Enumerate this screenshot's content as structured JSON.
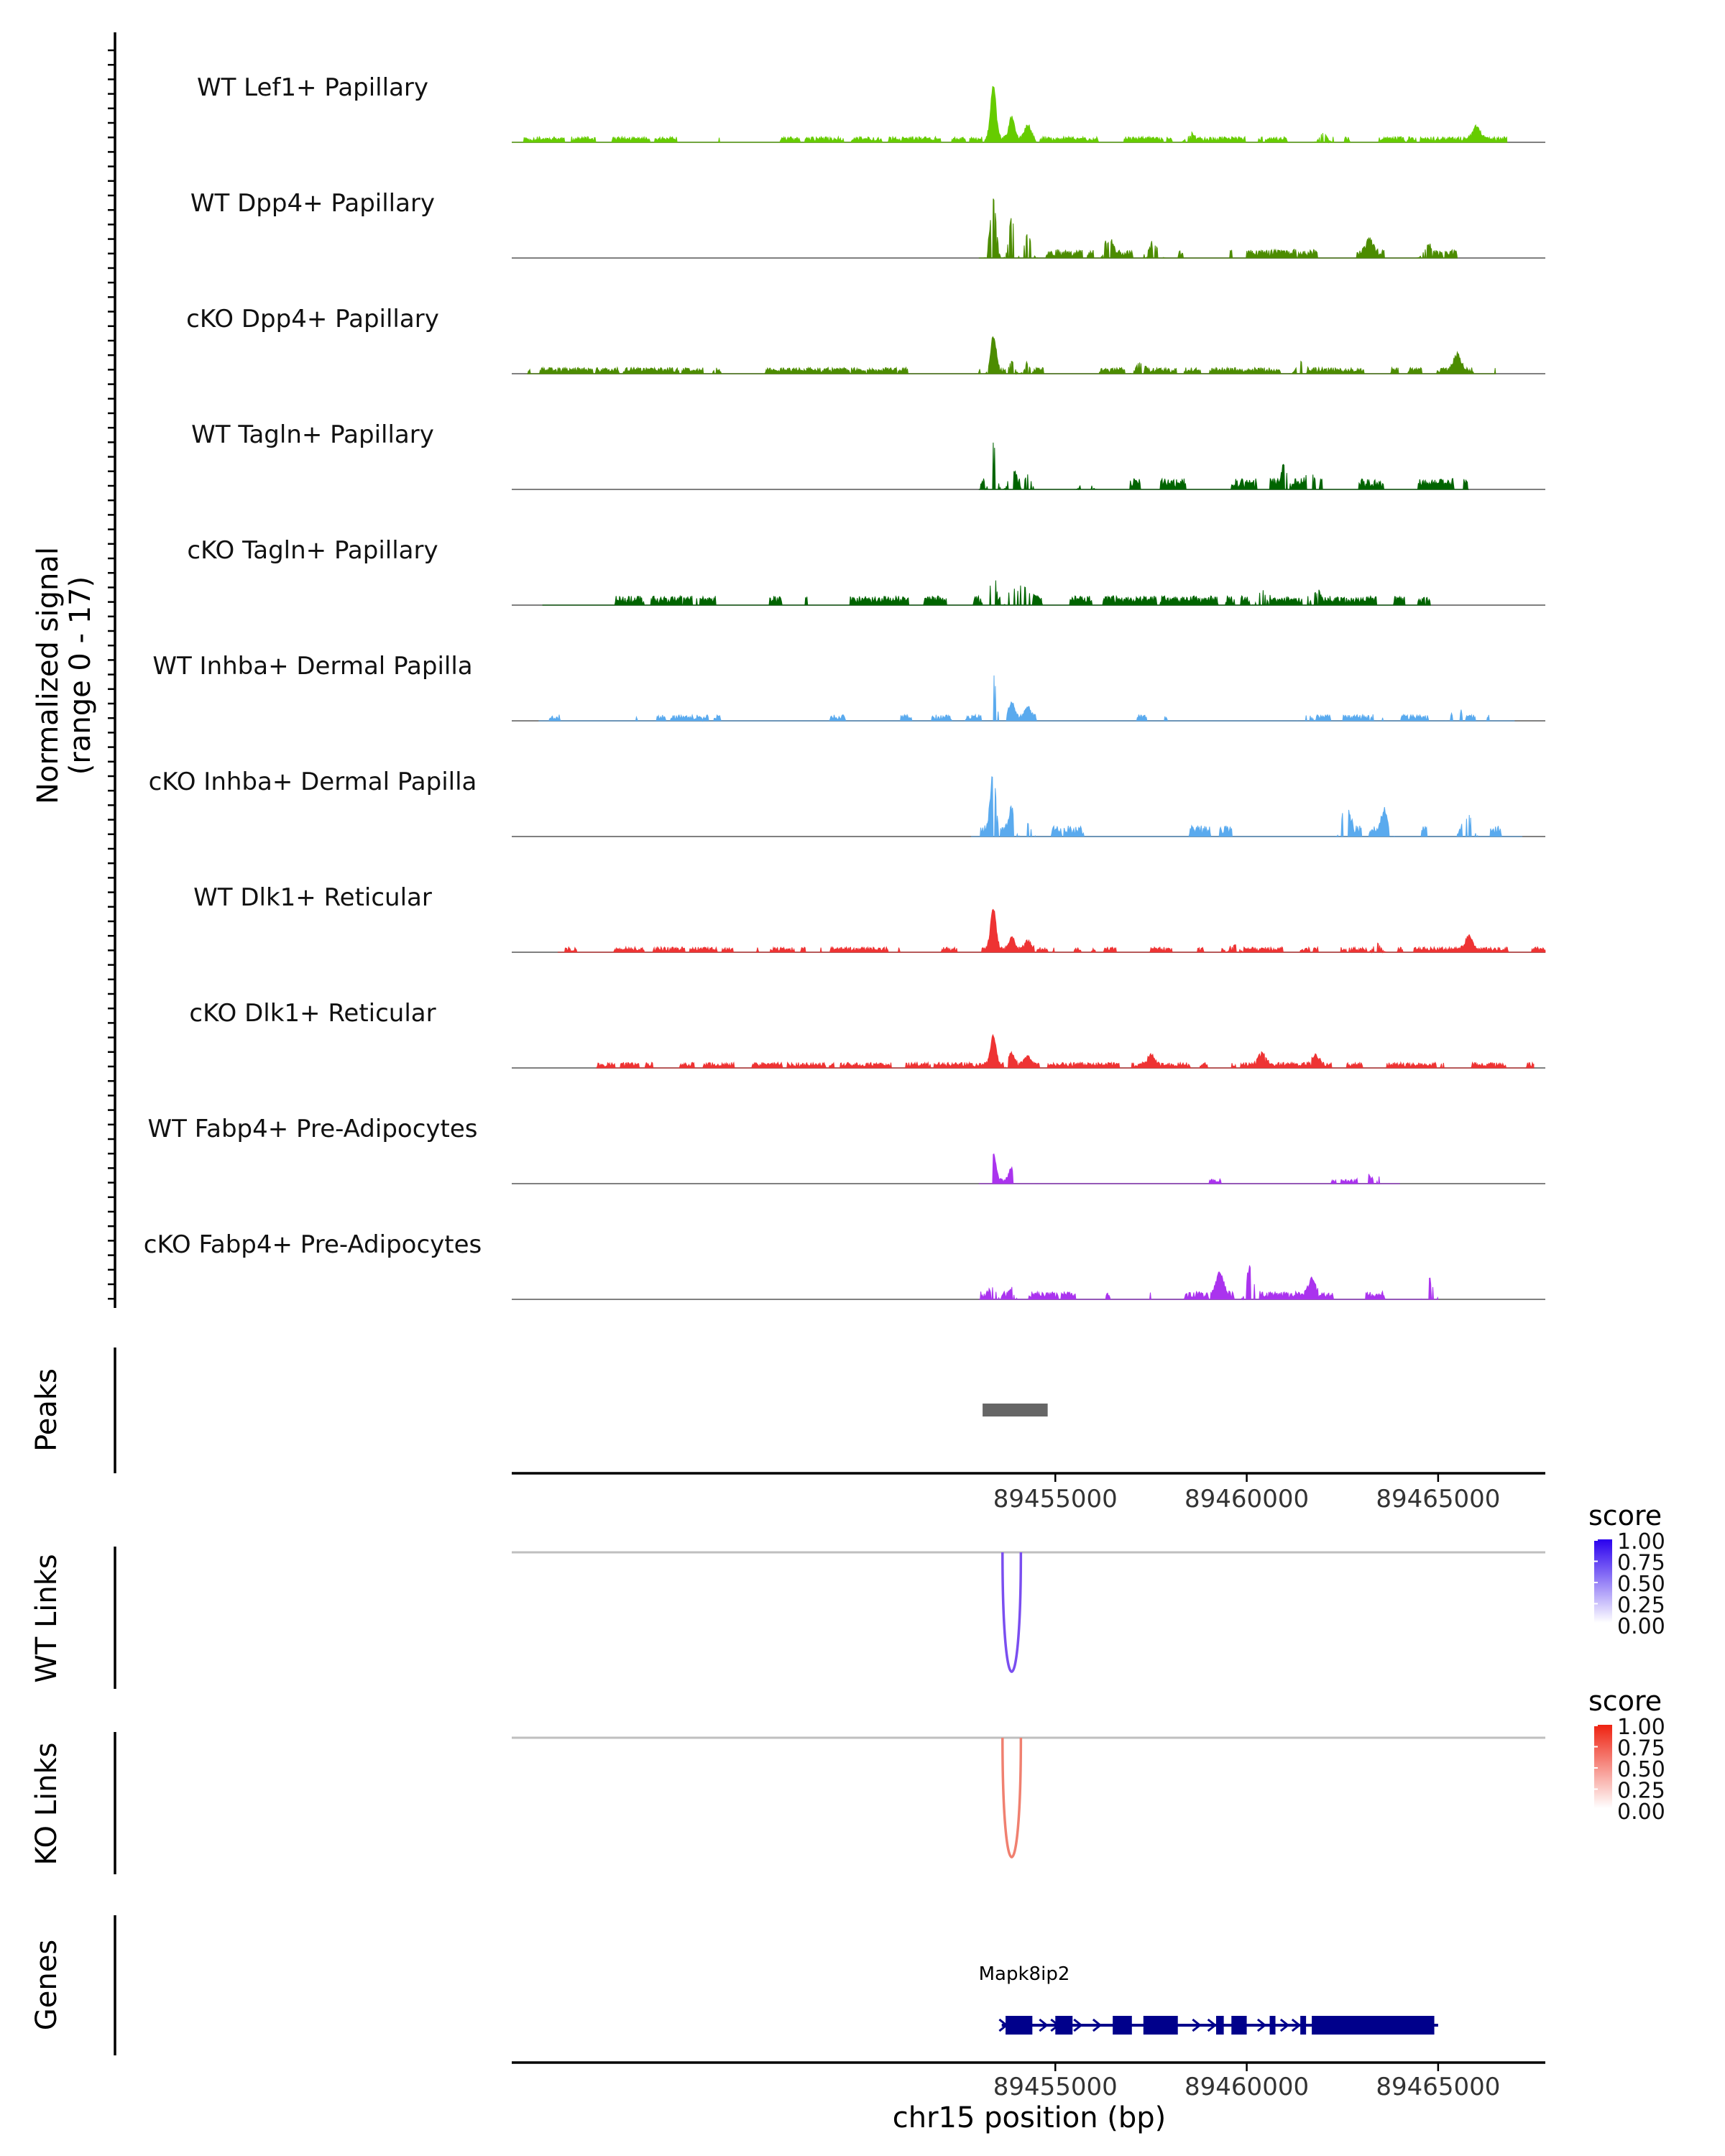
{
  "chart_data": {
    "type": "area",
    "chromosome": "chr15",
    "x_range": [
      89440800,
      89467800
    ],
    "coverage_panel": {
      "ylabel_line1": "Normalized signal",
      "ylabel_line2": "(range 0 - 17)",
      "y_range": [
        0,
        17
      ],
      "main_peak_bp": 89453380,
      "tracks": [
        {
          "name": "WT Lef1+ Papillary",
          "color": "#66cc00",
          "seed": 11,
          "density": 0.55,
          "noise": 0.18,
          "main": 0.85,
          "secondary": 0.35,
          "start": 89440800,
          "end": 89466800,
          "hotspots": [
            [
              89466000,
              0.2
            ],
            [
              89462000,
              0.15
            ],
            [
              89458500,
              0.1
            ]
          ]
        },
        {
          "name": "WT Dpp4+ Papillary",
          "color": "#4c8c00",
          "seed": 23,
          "density": 0.32,
          "noise": 0.28,
          "main": 0.95,
          "secondary": 0.65,
          "start": 89453000,
          "end": 89465500,
          "hotspots": [
            [
              89456400,
              0.25
            ],
            [
              89457600,
              0.2
            ],
            [
              89463200,
              0.2
            ],
            [
              89464700,
              0.15
            ]
          ]
        },
        {
          "name": "cKO Dpp4+ Papillary",
          "color": "#4c8c00",
          "seed": 37,
          "density": 0.45,
          "noise": 0.2,
          "main": 0.55,
          "secondary": 0.2,
          "start": 89441200,
          "end": 89466500,
          "hotspots": [
            [
              89465500,
              0.25
            ],
            [
              89461400,
              0.2
            ],
            [
              89457200,
              0.18
            ]
          ]
        },
        {
          "name": "WT Tagln+ Papillary",
          "color": "#006400",
          "seed": 41,
          "density": 0.22,
          "noise": 0.35,
          "main": 0.75,
          "secondary": 0.4,
          "start": 89453000,
          "end": 89465800,
          "hotspots": [
            [
              89461000,
              0.3
            ],
            [
              89455800,
              0.25
            ],
            [
              89461700,
              0.25
            ]
          ]
        },
        {
          "name": "cKO Tagln+ Papillary",
          "color": "#006400",
          "seed": 53,
          "density": 0.3,
          "noise": 0.3,
          "main": 0.6,
          "secondary": 0.35,
          "start": 89441600,
          "end": 89464800,
          "hotspots": [
            [
              89454100,
              0.3
            ],
            [
              89460400,
              0.25
            ],
            [
              89461800,
              0.2
            ]
          ]
        },
        {
          "name": "WT Inhba+ Dermal Papilla",
          "color": "#5aaaee",
          "seed": 67,
          "density": 0.12,
          "noise": 0.2,
          "main": 0.75,
          "secondary": 0.25,
          "start": 89441500,
          "end": 89467000,
          "hotspots": [
            [
              89463400,
              0.2
            ],
            [
              89465500,
              0.15
            ],
            [
              89461600,
              0.1
            ]
          ]
        },
        {
          "name": "cKO Inhba+ Dermal Papilla",
          "color": "#5aaaee",
          "seed": 71,
          "density": 0.14,
          "noise": 0.35,
          "main": 1.0,
          "secondary": 0.35,
          "start": 89452800,
          "end": 89467200,
          "hotspots": [
            [
              89462600,
              0.45
            ],
            [
              89465800,
              0.35
            ],
            [
              89463600,
              0.3
            ]
          ]
        },
        {
          "name": "WT Dlk1+ Reticular",
          "color": "#ee3333",
          "seed": 83,
          "density": 0.48,
          "noise": 0.17,
          "main": 0.65,
          "secondary": 0.2,
          "start": 89442000,
          "end": 89467800,
          "hotspots": [
            [
              89465800,
              0.2
            ],
            [
              89463400,
              0.15
            ],
            [
              89459700,
              0.12
            ]
          ]
        },
        {
          "name": "cKO Dlk1+ Reticular",
          "color": "#ee3333",
          "seed": 97,
          "density": 0.55,
          "noise": 0.18,
          "main": 0.45,
          "secondary": 0.2,
          "start": 89443000,
          "end": 89467500,
          "hotspots": [
            [
              89460400,
              0.2
            ],
            [
              89457500,
              0.15
            ],
            [
              89461800,
              0.15
            ]
          ]
        },
        {
          "name": "WT Fabp4+ Pre-Adipocytes",
          "color": "#aa33ee",
          "seed": 101,
          "density": 0.04,
          "noise": 0.15,
          "main": 0.45,
          "secondary": 0.2,
          "start": 89453000,
          "end": 89464000,
          "hotspots": [
            [
              89463600,
              0.4
            ],
            [
              89463100,
              0.2
            ]
          ]
        },
        {
          "name": "cKO Fabp4+ Pre-Adipocytes",
          "color": "#aa33ee",
          "seed": 113,
          "density": 0.16,
          "noise": 0.25,
          "main": 0.2,
          "secondary": 0.1,
          "start": 89453000,
          "end": 89465000,
          "hotspots": [
            [
              89460100,
              0.45
            ],
            [
              89459300,
              0.35
            ],
            [
              89461700,
              0.25
            ],
            [
              89463800,
              0.25
            ],
            [
              89464800,
              0.25
            ]
          ]
        }
      ]
    },
    "peaks_panel": {
      "ylabel": "Peaks",
      "peaks": [
        [
          89453100,
          89454800
        ]
      ],
      "color": "#666666"
    },
    "axis_ticks": {
      "values": [
        89455000,
        89460000,
        89465000
      ],
      "labels": [
        "89455000",
        "89460000",
        "89465000"
      ]
    },
    "links_panels": [
      {
        "ylabel": "WT Links",
        "legend_title": "score",
        "color": "#7a4ef0",
        "gradient_top": "#2a00ee",
        "gradient_bottom": "#ffffff",
        "legend_labels": [
          "1.00",
          "0.75",
          "0.50",
          "0.25",
          "0.00"
        ],
        "link_start": 89453620,
        "link_end": 89454100,
        "depth": 0.9
      },
      {
        "ylabel": "KO Links",
        "legend_title": "score",
        "color": "#f08070",
        "gradient_top": "#ee2211",
        "gradient_bottom": "#ffffff",
        "legend_labels": [
          "1.00",
          "0.75",
          "0.50",
          "0.25",
          "0.00"
        ],
        "link_start": 89453620,
        "link_end": 89454100,
        "depth": 0.9
      }
    ],
    "genes_panel": {
      "ylabel": "Genes",
      "gene_name": "Mapk8ip2",
      "color": "#00008b",
      "start": 89453600,
      "end": 89465000,
      "exons": [
        [
          89453700,
          89454400
        ],
        [
          89455000,
          89455450
        ],
        [
          89456500,
          89457000
        ],
        [
          89457300,
          89458200
        ],
        [
          89459200,
          89459400
        ],
        [
          89459600,
          89460000
        ],
        [
          89460600,
          89460750
        ],
        [
          89461400,
          89461550
        ],
        [
          89461700,
          89464900
        ]
      ],
      "arrows": [
        89453650,
        89454700,
        89455000,
        89455600,
        89456100,
        89458700,
        89459100,
        89460400,
        89461000,
        89461300
      ]
    },
    "xlabel": "chr15 position (bp)"
  }
}
